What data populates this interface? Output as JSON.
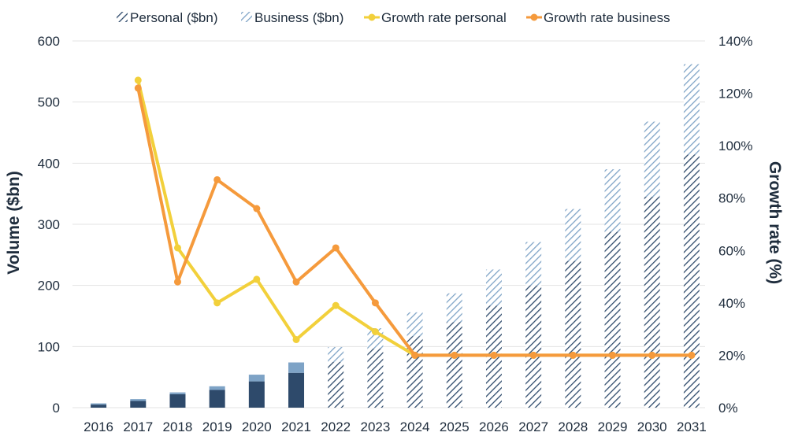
{
  "chart_data": {
    "type": "bar+line",
    "title": "",
    "categories": [
      "2016",
      "2017",
      "2018",
      "2019",
      "2020",
      "2021",
      "2022",
      "2023",
      "2024",
      "2025",
      "2026",
      "2027",
      "2028",
      "2029",
      "2030",
      "2031"
    ],
    "forecast_from": "2022",
    "ylabel": "Volume ($bn)",
    "y2label": "Growth rate (%)",
    "ylim": [
      0,
      600
    ],
    "y2lim": [
      0,
      140
    ],
    "yticks": [
      "0",
      "100",
      "200",
      "300",
      "400",
      "500",
      "600"
    ],
    "y2ticks": [
      "0%",
      "20%",
      "40%",
      "60%",
      "80%",
      "100%",
      "120%",
      "140%"
    ],
    "grid": true,
    "legend_position": "top",
    "series": [
      {
        "name": "Personal ($bn)",
        "kind": "bar-stacked",
        "color": "#2e4a6b",
        "values": [
          5,
          11,
          22,
          29,
          43,
          57,
          75,
          97,
          117,
          140,
          167,
          200,
          240,
          288,
          345,
          414
        ]
      },
      {
        "name": "Business ($bn)",
        "kind": "bar-stacked",
        "color": "#7ea3c6",
        "values": [
          2,
          3,
          3,
          6,
          11,
          17,
          24,
          33,
          39,
          47,
          59,
          71,
          85,
          102,
          123,
          148
        ]
      },
      {
        "name": "Growth rate personal",
        "kind": "line",
        "axis": "right",
        "color": "#f2d03b",
        "values": [
          null,
          125,
          61,
          40,
          49,
          26,
          39,
          29,
          20,
          20,
          20,
          20,
          20,
          20,
          20,
          20
        ]
      },
      {
        "name": "Growth rate business",
        "kind": "line",
        "axis": "right",
        "color": "#f59a3c",
        "values": [
          null,
          122,
          48,
          87,
          76,
          48,
          61,
          40,
          20,
          20,
          20,
          20,
          20,
          20,
          20,
          20
        ]
      }
    ]
  }
}
